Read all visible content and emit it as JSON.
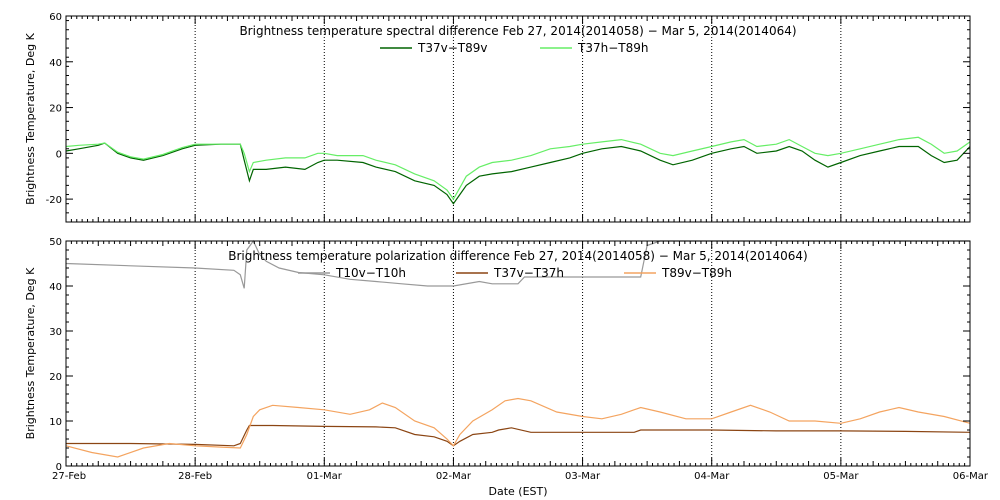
{
  "x_axis": {
    "label": "Date (EST)",
    "ticks": [
      "27-Feb",
      "28-Feb",
      "01-Mar",
      "02-Mar",
      "03-Mar",
      "04-Mar",
      "05-Mar",
      "06-Mar"
    ]
  },
  "chart_data": [
    {
      "type": "line",
      "title": "Brightness temperature spectral difference     Feb 27, 2014(2014058) − Mar  5, 2014(2014064)",
      "xlabel": "",
      "ylabel": "Brightness Temperature, Deg K",
      "x_units": "days since 27-Feb 00:00 EST",
      "xlim": [
        0,
        7
      ],
      "ylim": [
        -30,
        60
      ],
      "yticks": [
        -20,
        0,
        20,
        40,
        60
      ],
      "grid": "vertical dotted at day boundaries",
      "legend_position": "top-center",
      "series": [
        {
          "name": "T37v−T89v",
          "color": "#006400",
          "points": [
            [
              0,
              1
            ],
            [
              0.1,
              2
            ],
            [
              0.25,
              3.5
            ],
            [
              0.3,
              4.5
            ],
            [
              0.4,
              0
            ],
            [
              0.5,
              -2
            ],
            [
              0.6,
              -3
            ],
            [
              0.75,
              -1
            ],
            [
              0.9,
              2
            ],
            [
              1,
              3.5
            ],
            [
              1.2,
              4
            ],
            [
              1.35,
              4
            ],
            [
              1.38,
              -3
            ],
            [
              1.42,
              -12
            ],
            [
              1.45,
              -7
            ],
            [
              1.55,
              -7
            ],
            [
              1.7,
              -6
            ],
            [
              1.85,
              -7
            ],
            [
              1.95,
              -4
            ],
            [
              2.0,
              -3
            ],
            [
              2.1,
              -3
            ],
            [
              2.3,
              -4
            ],
            [
              2.4,
              -6
            ],
            [
              2.55,
              -8
            ],
            [
              2.7,
              -12
            ],
            [
              2.85,
              -14
            ],
            [
              2.95,
              -18
            ],
            [
              3.0,
              -22
            ],
            [
              3.05,
              -18
            ],
            [
              3.1,
              -14
            ],
            [
              3.2,
              -10
            ],
            [
              3.3,
              -9
            ],
            [
              3.45,
              -8
            ],
            [
              3.6,
              -6
            ],
            [
              3.75,
              -4
            ],
            [
              3.9,
              -2
            ],
            [
              4.0,
              0
            ],
            [
              4.15,
              2
            ],
            [
              4.3,
              3
            ],
            [
              4.45,
              1
            ],
            [
              4.6,
              -3
            ],
            [
              4.7,
              -5
            ],
            [
              4.85,
              -3
            ],
            [
              5.0,
              0
            ],
            [
              5.15,
              2
            ],
            [
              5.25,
              3
            ],
            [
              5.35,
              0
            ],
            [
              5.5,
              1
            ],
            [
              5.6,
              3
            ],
            [
              5.7,
              1
            ],
            [
              5.8,
              -3
            ],
            [
              5.9,
              -6
            ],
            [
              6.0,
              -4
            ],
            [
              6.15,
              -1
            ],
            [
              6.3,
              1
            ],
            [
              6.45,
              3
            ],
            [
              6.6,
              3
            ],
            [
              6.7,
              -1
            ],
            [
              6.8,
              -4
            ],
            [
              6.9,
              -3
            ],
            [
              7.0,
              3
            ]
          ]
        },
        {
          "name": "T37h−T89h",
          "color": "#66ee66",
          "points": [
            [
              0,
              3
            ],
            [
              0.1,
              3.5
            ],
            [
              0.25,
              4
            ],
            [
              0.3,
              4.5
            ],
            [
              0.4,
              0.5
            ],
            [
              0.5,
              -1.5
            ],
            [
              0.6,
              -2.5
            ],
            [
              0.75,
              -0.5
            ],
            [
              0.9,
              2.5
            ],
            [
              1,
              4
            ],
            [
              1.2,
              4
            ],
            [
              1.35,
              4
            ],
            [
              1.38,
              0
            ],
            [
              1.42,
              -8
            ],
            [
              1.45,
              -4
            ],
            [
              1.55,
              -3
            ],
            [
              1.7,
              -2
            ],
            [
              1.85,
              -2
            ],
            [
              1.95,
              0
            ],
            [
              2.0,
              0
            ],
            [
              2.1,
              -1
            ],
            [
              2.3,
              -1
            ],
            [
              2.4,
              -3
            ],
            [
              2.55,
              -5
            ],
            [
              2.7,
              -9
            ],
            [
              2.85,
              -12
            ],
            [
              2.95,
              -16
            ],
            [
              3.0,
              -20
            ],
            [
              3.05,
              -15
            ],
            [
              3.1,
              -10
            ],
            [
              3.2,
              -6
            ],
            [
              3.3,
              -4
            ],
            [
              3.45,
              -3
            ],
            [
              3.6,
              -1
            ],
            [
              3.75,
              2
            ],
            [
              3.9,
              3
            ],
            [
              4.0,
              4
            ],
            [
              4.15,
              5
            ],
            [
              4.3,
              6
            ],
            [
              4.45,
              4
            ],
            [
              4.6,
              0
            ],
            [
              4.7,
              -1
            ],
            [
              4.85,
              1
            ],
            [
              5.0,
              3
            ],
            [
              5.15,
              5
            ],
            [
              5.25,
              6
            ],
            [
              5.35,
              3
            ],
            [
              5.5,
              4
            ],
            [
              5.6,
              6
            ],
            [
              5.7,
              3
            ],
            [
              5.8,
              0
            ],
            [
              5.9,
              -1
            ],
            [
              6.0,
              0
            ],
            [
              6.15,
              2
            ],
            [
              6.3,
              4
            ],
            [
              6.45,
              6
            ],
            [
              6.6,
              7
            ],
            [
              6.7,
              4
            ],
            [
              6.8,
              0
            ],
            [
              6.9,
              1
            ],
            [
              7.0,
              5
            ]
          ]
        }
      ]
    },
    {
      "type": "line",
      "title": "Brightness temperature polarization difference     Feb 27, 2014(2014058) − Mar  5, 2014(2014064)",
      "xlabel": "Date (EST)",
      "ylabel": "Brightness Temperature, Deg K",
      "x_units": "days since 27-Feb 00:00 EST",
      "xlim": [
        0,
        7
      ],
      "ylim": [
        0,
        50
      ],
      "yticks": [
        0,
        10,
        20,
        30,
        40,
        50
      ],
      "grid": "vertical dotted at day boundaries",
      "legend_position": "top-center",
      "series": [
        {
          "name": "T10v−T10h",
          "color": "#999999",
          "points": [
            [
              0,
              45
            ],
            [
              0.5,
              44.5
            ],
            [
              1,
              44
            ],
            [
              1.3,
              43.5
            ],
            [
              1.35,
              42.5
            ],
            [
              1.38,
              39.5
            ],
            [
              1.4,
              48
            ],
            [
              1.45,
              50
            ],
            [
              1.5,
              47
            ],
            [
              1.55,
              45.5
            ],
            [
              1.65,
              44
            ],
            [
              1.8,
              43
            ],
            [
              2.0,
              42.5
            ],
            [
              2.2,
              41.5
            ],
            [
              2.4,
              41
            ],
            [
              2.6,
              40.5
            ],
            [
              2.8,
              40
            ],
            [
              3.0,
              40
            ],
            [
              3.2,
              41
            ],
            [
              3.3,
              40.5
            ],
            [
              3.5,
              40.5
            ],
            [
              3.55,
              42
            ],
            [
              3.7,
              42
            ],
            [
              4.0,
              42
            ],
            [
              4.3,
              42
            ],
            [
              4.45,
              42
            ],
            [
              4.5,
              49
            ],
            [
              4.6,
              50
            ],
            [
              5.0,
              50
            ],
            [
              5.5,
              50
            ],
            [
              6.0,
              50
            ],
            [
              7.0,
              50
            ]
          ]
        },
        {
          "name": "T37v−T37h",
          "color": "#8b4513",
          "points": [
            [
              0,
              5
            ],
            [
              0.5,
              5
            ],
            [
              1,
              4.8
            ],
            [
              1.3,
              4.5
            ],
            [
              1.35,
              5
            ],
            [
              1.4,
              8
            ],
            [
              1.42,
              9
            ],
            [
              1.6,
              9
            ],
            [
              2.0,
              8.8
            ],
            [
              2.4,
              8.7
            ],
            [
              2.55,
              8.5
            ],
            [
              2.7,
              7
            ],
            [
              2.85,
              6.5
            ],
            [
              2.95,
              5.5
            ],
            [
              3.0,
              4.5
            ],
            [
              3.05,
              5.5
            ],
            [
              3.15,
              7
            ],
            [
              3.3,
              7.5
            ],
            [
              3.35,
              8
            ],
            [
              3.45,
              8.5
            ],
            [
              3.6,
              7.5
            ],
            [
              4.0,
              7.5
            ],
            [
              4.4,
              7.5
            ],
            [
              4.45,
              8
            ],
            [
              5.0,
              8
            ],
            [
              5.5,
              7.8
            ],
            [
              6.0,
              7.8
            ],
            [
              6.5,
              7.7
            ],
            [
              7.0,
              7.5
            ]
          ]
        },
        {
          "name": "T89v−T89h",
          "color": "#f4a460",
          "points": [
            [
              0,
              4.5
            ],
            [
              0.2,
              3
            ],
            [
              0.4,
              2
            ],
            [
              0.6,
              4
            ],
            [
              0.8,
              5
            ],
            [
              1.0,
              4.5
            ],
            [
              1.2,
              4.2
            ],
            [
              1.35,
              4
            ],
            [
              1.4,
              7
            ],
            [
              1.45,
              11
            ],
            [
              1.5,
              12.5
            ],
            [
              1.6,
              13.5
            ],
            [
              1.8,
              13
            ],
            [
              2.0,
              12.5
            ],
            [
              2.2,
              11.5
            ],
            [
              2.35,
              12.5
            ],
            [
              2.45,
              14
            ],
            [
              2.55,
              13
            ],
            [
              2.7,
              10
            ],
            [
              2.85,
              8.5
            ],
            [
              2.95,
              6
            ],
            [
              3.0,
              4.5
            ],
            [
              3.05,
              7
            ],
            [
              3.15,
              10
            ],
            [
              3.3,
              12.5
            ],
            [
              3.4,
              14.5
            ],
            [
              3.5,
              15
            ],
            [
              3.6,
              14.5
            ],
            [
              3.8,
              12
            ],
            [
              4.0,
              11
            ],
            [
              4.15,
              10.5
            ],
            [
              4.3,
              11.5
            ],
            [
              4.45,
              13
            ],
            [
              4.6,
              12
            ],
            [
              4.8,
              10.5
            ],
            [
              5.0,
              10.5
            ],
            [
              5.15,
              12
            ],
            [
              5.3,
              13.5
            ],
            [
              5.45,
              12
            ],
            [
              5.6,
              10
            ],
            [
              5.8,
              10
            ],
            [
              6.0,
              9.5
            ],
            [
              6.15,
              10.5
            ],
            [
              6.3,
              12
            ],
            [
              6.45,
              13
            ],
            [
              6.6,
              12
            ],
            [
              6.8,
              11
            ],
            [
              7.0,
              9.5
            ]
          ]
        }
      ]
    }
  ]
}
